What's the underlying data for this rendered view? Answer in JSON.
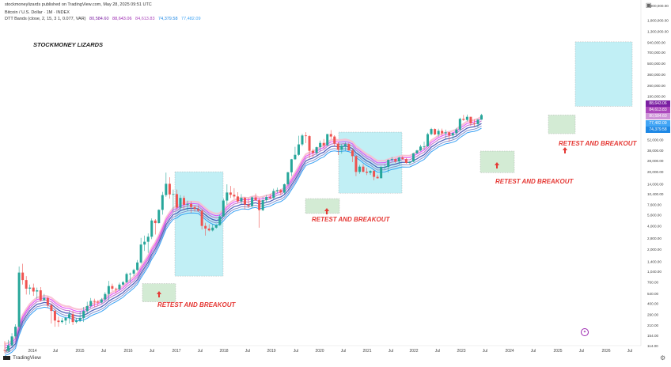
{
  "header": {
    "publisher": "stockmoneylizards published on TradingView.com, May 28, 2025 09:51 UTC",
    "symbol": "Bitcoin / U.S. Dollar · 1M · INDEX",
    "indicator_name": "DTT Bands (close, 2, 15, 3 1, 0.077, VAR)",
    "indicator_values": [
      "80,584.60",
      "88,643.06",
      "84,613.83",
      "74,379.58",
      "77,482.09"
    ]
  },
  "colors": {
    "up": "#26a69a",
    "down": "#ef5350",
    "band_outer": "#e040fb",
    "band_mid": "#3f51b5",
    "band_inner": "#2196f3",
    "box_blue": "#b2ebf2",
    "box_green": "#c8e6c9",
    "annotation": "#e53935",
    "tag_purple": "#7b1fa2",
    "tag_blue": "#1e88e5"
  },
  "watermark": "STOCKMONEY LIZARDS",
  "logo": "TradingView",
  "chart_data": {
    "type": "candlestick",
    "scale": "log",
    "ylim": [
      114,
      3000000
    ],
    "y_ticks": [
      "2,800,000.00",
      "1,800,000.00",
      "1,300,000.00",
      "940,000.00",
      "700,000.00",
      "500,000.00",
      "360,000.00",
      "260,000.00",
      "190,000.00",
      "140,000.00",
      "100,000.00",
      "72,000.00",
      "52,000.00",
      "38,000.00",
      "28,000.00",
      "20,000.00",
      "14,000.00",
      "10,400.00",
      "7,600.00",
      "5,600.00",
      "4,000.00",
      "2,800.00",
      "2,000.00",
      "1,400.00",
      "1,040.00",
      "760.00",
      "540.00",
      "400.00",
      "290.00",
      "210.00",
      "154.00",
      "114.00"
    ],
    "x_ticks": [
      "Jul",
      "2014",
      "Jul",
      "2015",
      "Jul",
      "2016",
      "Jul",
      "2017",
      "Jul",
      "2018",
      "Jul",
      "2019",
      "Jul",
      "2020",
      "Jul",
      "2021",
      "Jul",
      "2022",
      "Jul",
      "2023",
      "Jul",
      "2024",
      "Jul",
      "2025",
      "Jul",
      "2026",
      "Jul"
    ],
    "price_tags": [
      {
        "label": "88,643.06",
        "color": "#7b1fa2"
      },
      {
        "label": "84,613.83",
        "color": "#ab47bc"
      },
      {
        "label": "80,584.60",
        "color": "#ce93d8"
      },
      {
        "label": "77,482.09",
        "color": "#42a5f5"
      },
      {
        "label": "74,379.58",
        "color": "#1e88e5"
      }
    ],
    "annotations": [
      {
        "text": "RETEST AND BREAKOUT"
      },
      {
        "text": "RETEST AND BREAKOUT"
      },
      {
        "text": "RETEST AND BREAKOUT"
      },
      {
        "text": "RETEST AND BREAKOUT"
      }
    ],
    "candles": [
      [
        100,
        98,
        130,
        92
      ],
      [
        98,
        115,
        135,
        95
      ],
      [
        115,
        150,
        165,
        110
      ],
      [
        150,
        200,
        215,
        140
      ],
      [
        200,
        1000,
        1200,
        190
      ],
      [
        1000,
        800,
        1300,
        700
      ],
      [
        800,
        620,
        900,
        520
      ],
      [
        620,
        640,
        700,
        520
      ],
      [
        640,
        570,
        720,
        500
      ],
      [
        570,
        590,
        640,
        460
      ],
      [
        590,
        440,
        650,
        420
      ],
      [
        440,
        470,
        530,
        430
      ],
      [
        470,
        380,
        490,
        350
      ],
      [
        380,
        320,
        400,
        220
      ],
      [
        320,
        240,
        340,
        200
      ],
      [
        240,
        230,
        270,
        200
      ],
      [
        230,
        240,
        260,
        220
      ],
      [
        240,
        260,
        270,
        210
      ],
      [
        260,
        290,
        320,
        220
      ],
      [
        290,
        230,
        320,
        210
      ],
      [
        230,
        240,
        260,
        220
      ],
      [
        240,
        260,
        320,
        230
      ],
      [
        260,
        320,
        360,
        230
      ],
      [
        320,
        370,
        420,
        300
      ],
      [
        370,
        430,
        470,
        350
      ],
      [
        430,
        420,
        460,
        360
      ],
      [
        420,
        410,
        440,
        370
      ],
      [
        410,
        450,
        470,
        400
      ],
      [
        450,
        530,
        560,
        420
      ],
      [
        530,
        670,
        780,
        440
      ],
      [
        670,
        620,
        720,
        580
      ],
      [
        620,
        610,
        640,
        540
      ],
      [
        610,
        700,
        740,
        580
      ],
      [
        700,
        750,
        780,
        680
      ],
      [
        750,
        960,
        1000,
        730
      ],
      [
        960,
        970,
        1000,
        740
      ],
      [
        970,
        1080,
        1120,
        900
      ],
      [
        1080,
        1350,
        1450,
        1050
      ],
      [
        1350,
        2300,
        2800,
        1300
      ],
      [
        2300,
        2500,
        3000,
        1900
      ],
      [
        2500,
        2900,
        3200,
        1800
      ],
      [
        2900,
        4700,
        5000,
        2700
      ],
      [
        4700,
        4350,
        4900,
        3100
      ],
      [
        4350,
        6450,
        6550,
        4300
      ],
      [
        6450,
        10000,
        11000,
        5600
      ],
      [
        10000,
        14000,
        19500,
        9500
      ],
      [
        14000,
        10200,
        17000,
        9000
      ],
      [
        10200,
        10300,
        11800,
        6000
      ],
      [
        10300,
        6900,
        11800,
        6500
      ],
      [
        6900,
        9200,
        10000,
        6400
      ],
      [
        9200,
        7500,
        9800,
        6400
      ],
      [
        7500,
        7700,
        8500,
        6200
      ],
      [
        7700,
        7000,
        8300,
        5900
      ],
      [
        7000,
        6600,
        7400,
        6100
      ],
      [
        6600,
        6300,
        7400,
        6100
      ],
      [
        6300,
        4000,
        6600,
        3600
      ],
      [
        4000,
        3700,
        4400,
        3000
      ],
      [
        3700,
        3500,
        4200,
        3400
      ],
      [
        3500,
        3800,
        4200,
        3400
      ],
      [
        3800,
        4100,
        4200,
        3700
      ],
      [
        4100,
        5300,
        5600,
        4000
      ],
      [
        5300,
        8500,
        9000,
        5300
      ],
      [
        8500,
        10800,
        13800,
        7500
      ],
      [
        10800,
        10100,
        13100,
        9200
      ],
      [
        10100,
        9600,
        12300,
        9000
      ],
      [
        9600,
        8300,
        10900,
        7900
      ],
      [
        8300,
        9200,
        10300,
        7700
      ],
      [
        9200,
        7550,
        9500,
        6500
      ],
      [
        7550,
        7200,
        9200,
        6800
      ],
      [
        7200,
        9350,
        9600,
        6900
      ],
      [
        9350,
        8600,
        10500,
        8500
      ],
      [
        8600,
        6400,
        9200,
        3800
      ],
      [
        6400,
        8600,
        9500,
        6200
      ],
      [
        8600,
        9450,
        10000,
        8100
      ],
      [
        9450,
        9150,
        10400,
        8900
      ],
      [
        9150,
        11300,
        12100,
        8900
      ],
      [
        11300,
        11600,
        12500,
        10500
      ],
      [
        11600,
        10800,
        12000,
        10000
      ],
      [
        10800,
        13800,
        14100,
        10400
      ],
      [
        13800,
        19700,
        19900,
        13200
      ],
      [
        19700,
        29000,
        29300,
        17600
      ],
      [
        29000,
        33100,
        42000,
        28500
      ],
      [
        33100,
        45100,
        58300,
        32000
      ],
      [
        45100,
        58800,
        61700,
        43000
      ],
      [
        58800,
        57700,
        64800,
        47000
      ],
      [
        57700,
        37300,
        59500,
        30000
      ],
      [
        37300,
        35000,
        39500,
        31000
      ],
      [
        35000,
        41500,
        42400,
        32700
      ],
      [
        41500,
        47100,
        50500,
        37300
      ],
      [
        47100,
        43800,
        52900,
        39600
      ],
      [
        43800,
        61300,
        61500,
        43300
      ],
      [
        61300,
        57000,
        69000,
        53000
      ],
      [
        57000,
        46200,
        59200,
        42000
      ],
      [
        46200,
        38500,
        47900,
        33000
      ],
      [
        38500,
        43200,
        45800,
        34300
      ],
      [
        43200,
        45500,
        48100,
        37500
      ],
      [
        45500,
        37600,
        47400,
        37400
      ],
      [
        37600,
        31800,
        40000,
        26700
      ],
      [
        31800,
        19900,
        32400,
        17600
      ],
      [
        19900,
        23300,
        24600,
        18800
      ],
      [
        23300,
        20000,
        25200,
        19600
      ],
      [
        20000,
        19400,
        22500,
        18100
      ],
      [
        19400,
        20500,
        21000,
        18200
      ],
      [
        20500,
        17200,
        21400,
        15500
      ],
      [
        17200,
        16500,
        18400,
        16300
      ],
      [
        16500,
        23100,
        23900,
        16500
      ],
      [
        23100,
        23100,
        25200,
        21400
      ],
      [
        23100,
        28500,
        28900,
        19500
      ],
      [
        28500,
        29200,
        31000,
        26900
      ],
      [
        29200,
        27200,
        29800,
        25800
      ],
      [
        27200,
        30500,
        31400,
        24800
      ],
      [
        30500,
        29200,
        31800,
        28600
      ],
      [
        29200,
        26000,
        30200,
        25400
      ],
      [
        26000,
        27000,
        27500,
        24900
      ],
      [
        27000,
        34600,
        35000,
        26600
      ],
      [
        34600,
        37700,
        38400,
        34100
      ],
      [
        37700,
        42300,
        44700,
        36700
      ],
      [
        42300,
        42600,
        48900,
        38500
      ],
      [
        42600,
        61200,
        63900,
        41900
      ],
      [
        61200,
        71300,
        73800,
        59000
      ],
      [
        71300,
        60700,
        72700,
        59200
      ],
      [
        60700,
        67500,
        71900,
        56600
      ],
      [
        67500,
        62700,
        72000,
        58600
      ],
      [
        62700,
        64600,
        70000,
        53500
      ],
      [
        64600,
        58900,
        65100,
        49000
      ],
      [
        58900,
        63300,
        64000,
        52600
      ],
      [
        63300,
        70200,
        73600,
        58900
      ],
      [
        70200,
        96400,
        99600,
        66800
      ],
      [
        96400,
        93400,
        108300,
        90800
      ],
      [
        93400,
        102400,
        109500,
        89200
      ],
      [
        102400,
        84300,
        102700,
        78200
      ],
      [
        84300,
        82500,
        95000,
        76600
      ],
      [
        82500,
        94200,
        95700,
        74500
      ],
      [
        94200,
        108000,
        112000,
        93400
      ]
    ]
  }
}
